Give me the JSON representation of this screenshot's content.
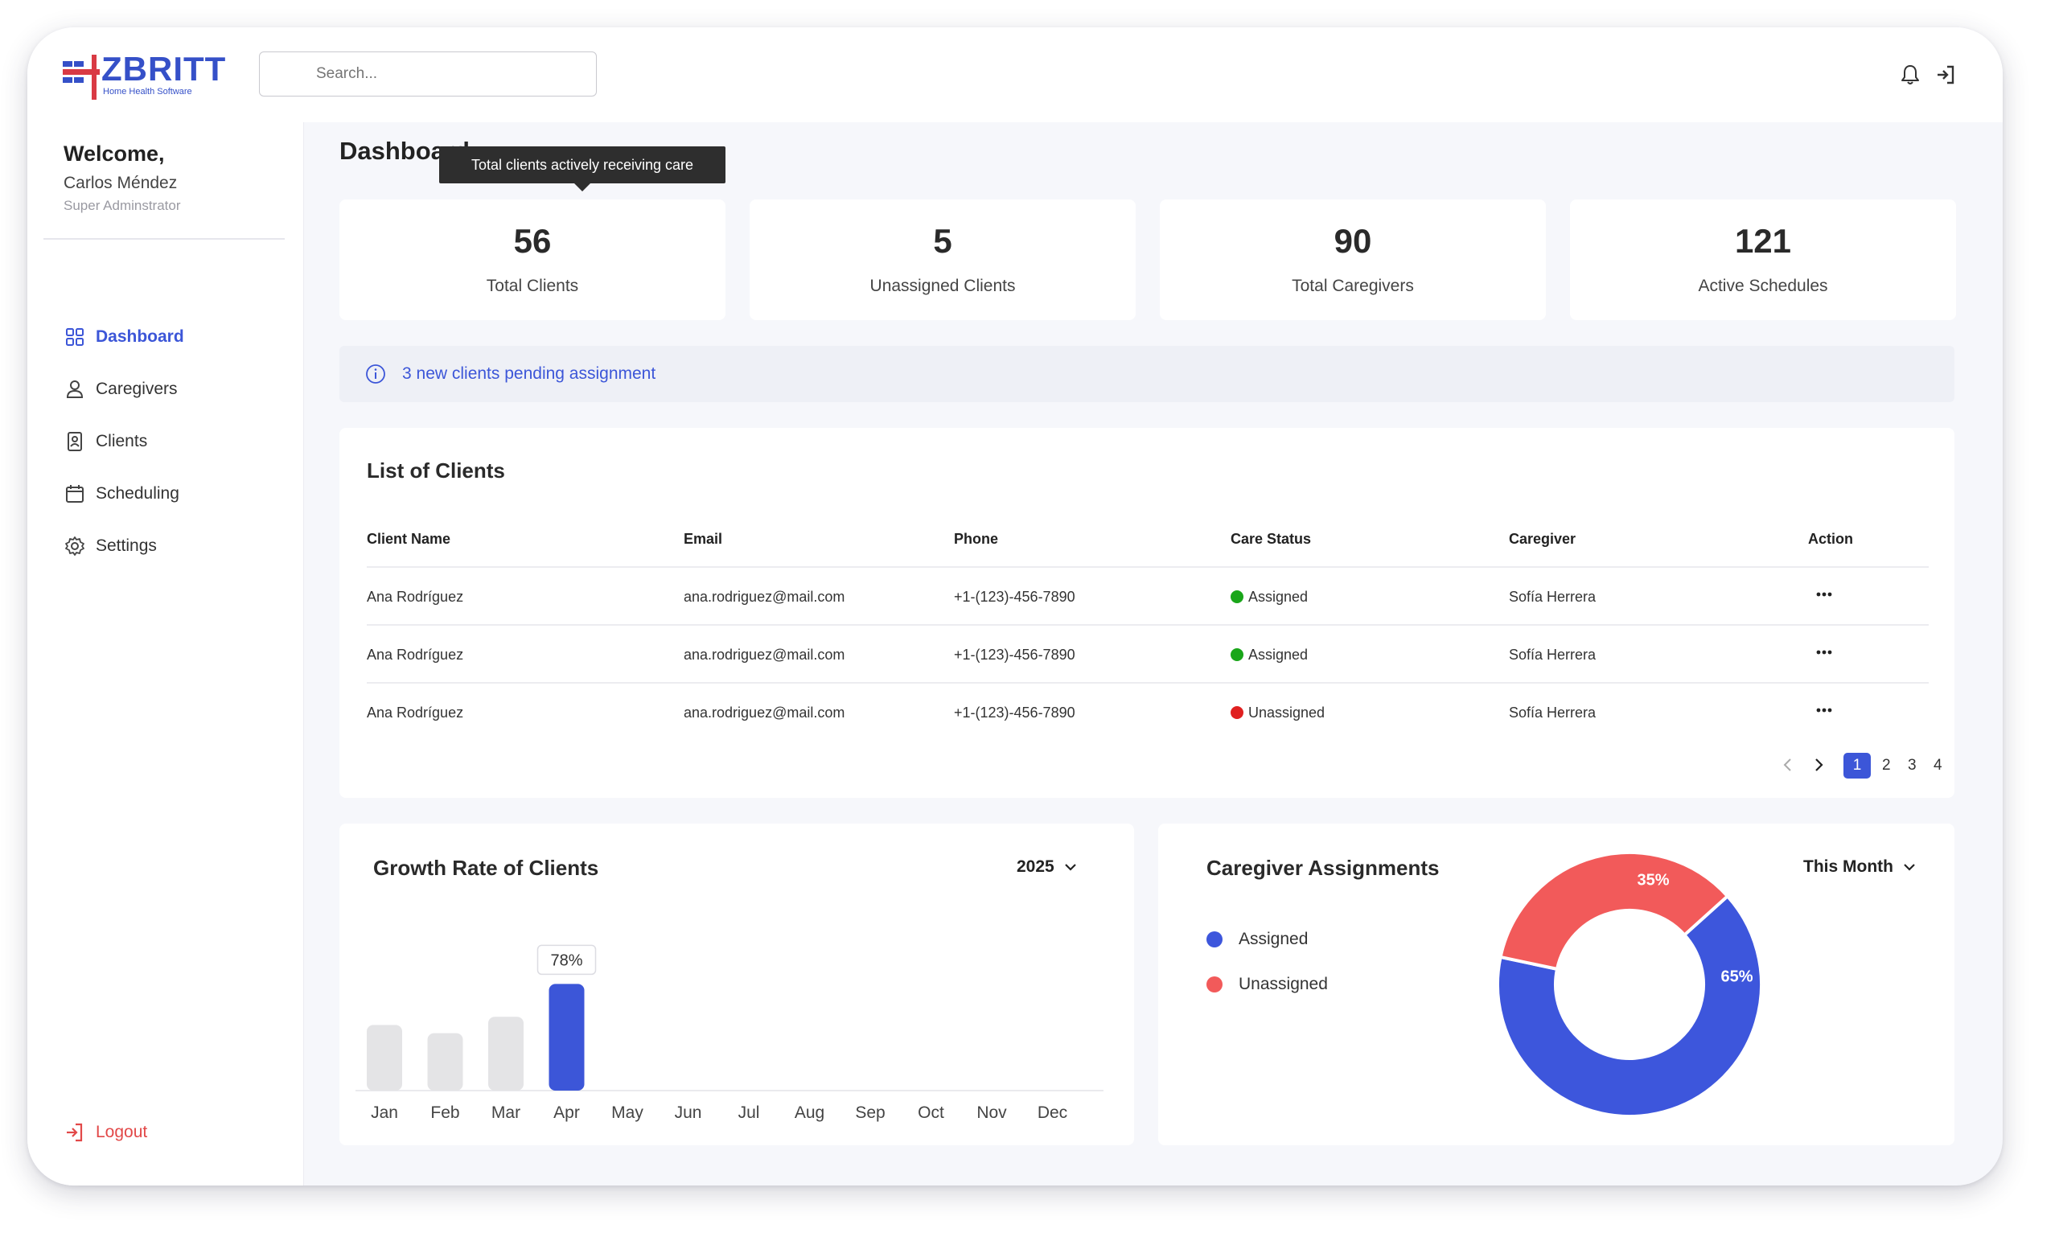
{
  "brand": {
    "name": "ZBRITT",
    "tagline": "Home Health Software"
  },
  "search": {
    "placeholder": "Search..."
  },
  "user": {
    "greeting": "Welcome,",
    "name": "Carlos Méndez",
    "role": "Super Adminstrator"
  },
  "nav": {
    "items": [
      {
        "label": "Dashboard",
        "icon": "grid-icon",
        "active": true
      },
      {
        "label": "Caregivers",
        "icon": "person-icon",
        "active": false
      },
      {
        "label": "Clients",
        "icon": "id-badge-icon",
        "active": false
      },
      {
        "label": "Scheduling",
        "icon": "calendar-icon",
        "active": false
      },
      {
        "label": "Settings",
        "icon": "gear-icon",
        "active": false
      }
    ],
    "logout": "Logout"
  },
  "page": {
    "title": "Dashboard",
    "tooltip": "Total clients actively receiving care"
  },
  "stats": [
    {
      "value": "56",
      "label": "Total Clients"
    },
    {
      "value": "5",
      "label": "Unassigned Clients"
    },
    {
      "value": "90",
      "label": "Total Caregivers"
    },
    {
      "value": "121",
      "label": "Active Schedules"
    }
  ],
  "notice": {
    "text": "3 new clients pending assignment"
  },
  "clients": {
    "title": "List of Clients",
    "columns": [
      "Client Name",
      "Email",
      "Phone",
      "Care Status",
      "Caregiver",
      "Action"
    ],
    "rows": [
      {
        "name": "Ana Rodríguez",
        "email": "ana.rodriguez@mail.com",
        "phone": "+1-(123)-456-7890",
        "status": "Assigned",
        "caregiver": "Sofía Herrera"
      },
      {
        "name": "Ana Rodríguez",
        "email": "ana.rodriguez@mail.com",
        "phone": "+1-(123)-456-7890",
        "status": "Assigned",
        "caregiver": "Sofía Herrera"
      },
      {
        "name": "Ana Rodríguez",
        "email": "ana.rodriguez@mail.com",
        "phone": "+1-(123)-456-7890",
        "status": "Unassigned",
        "caregiver": "Sofía Herrera"
      }
    ],
    "pagination": {
      "pages": [
        "1",
        "2",
        "3",
        "4"
      ],
      "current": "1"
    }
  },
  "growth": {
    "title": "Growth Rate of Clients",
    "year": "2025"
  },
  "assignments": {
    "title": "Caregiver Assignments",
    "period": "This Month"
  },
  "colors": {
    "accent": "#3c56d8",
    "assigned": "#3d56dc",
    "unassigned": "#f25a5a",
    "status_green": "#1aa61a",
    "status_red": "#e02020",
    "bar_inactive": "#e4e4e6"
  },
  "chart_data": [
    {
      "type": "bar",
      "title": "Growth Rate of Clients",
      "categories": [
        "Jan",
        "Feb",
        "Mar",
        "Apr",
        "May",
        "Jun",
        "Jul",
        "Aug",
        "Sep",
        "Oct",
        "Nov",
        "Dec"
      ],
      "values": [
        48,
        42,
        54,
        78,
        null,
        null,
        null,
        null,
        null,
        null,
        null,
        null
      ],
      "highlight": "Apr",
      "data_label": "78%",
      "ylim": [
        0,
        100
      ]
    },
    {
      "type": "pie",
      "title": "Caregiver Assignments",
      "labels": [
        "Assigned",
        "Unassigned"
      ],
      "values": [
        65,
        35
      ],
      "value_labels": [
        "65%",
        "35%"
      ],
      "legend": "left"
    }
  ]
}
